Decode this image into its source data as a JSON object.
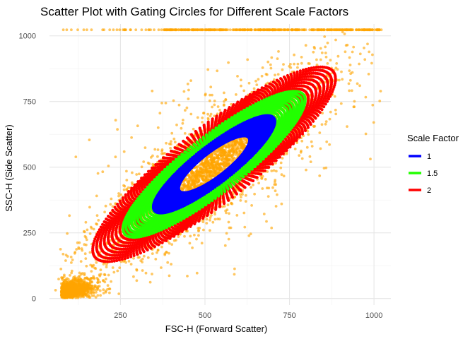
{
  "chart_data": {
    "type": "scatter",
    "title": "Scatter Plot with Gating Circles for Different Scale Factors",
    "xlabel": "FSC-H (Forward Scatter)",
    "ylabel": "SSC-H (Side Scatter)",
    "xlim": [
      40,
      1050
    ],
    "ylim": [
      -25,
      1045
    ],
    "x_ticks": [
      250,
      500,
      750,
      1000
    ],
    "y_ticks": [
      0,
      250,
      500,
      750,
      1000
    ],
    "grid": true,
    "point_color": "#FFA500",
    "legend": {
      "title": "Scale Factor",
      "position": "right",
      "entries": [
        {
          "label": "1",
          "color": "#0000FF"
        },
        {
          "label": "1.5",
          "color": "#22FF00"
        },
        {
          "label": "2",
          "color": "#FF0000"
        }
      ]
    },
    "gating_ellipses": [
      {
        "scale": "2",
        "color": "#FF0000",
        "center": [
          527,
          511
        ],
        "semi_major": 500,
        "semi_minor": 105,
        "angle_deg": 46
      },
      {
        "scale": "1.5",
        "color": "#22FF00",
        "center": [
          527,
          511
        ],
        "semi_major": 375,
        "semi_minor": 79,
        "angle_deg": 46
      },
      {
        "scale": "1",
        "color": "#0000FF",
        "center": [
          527,
          511
        ],
        "semi_major": 250,
        "semi_minor": 53,
        "angle_deg": 46
      }
    ],
    "point_cloud": {
      "center": [
        527,
        511
      ],
      "main_spread_major": 215,
      "minor_spread": 60,
      "low_cluster_center": [
        95,
        40
      ],
      "saturation_y": 1023,
      "max_value": 1023
    }
  }
}
